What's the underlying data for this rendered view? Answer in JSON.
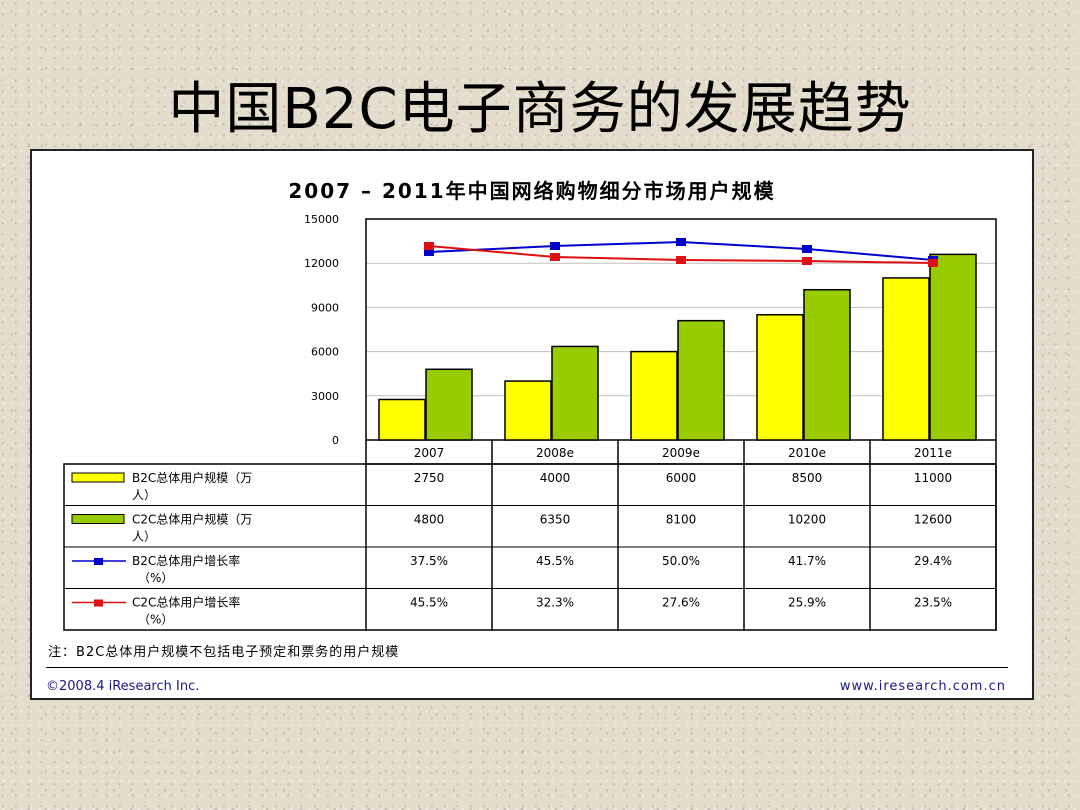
{
  "slide": {
    "title": "中国B2C电子商务的发展趋势"
  },
  "chart_data": {
    "type": "bar",
    "title": "2007 – 2011年中国网络购物细分市场用户规模",
    "categories": [
      "2007",
      "2008e",
      "2009e",
      "2010e",
      "2011e"
    ],
    "ylim": [
      0,
      15000
    ],
    "yticks": [
      "15000",
      "12000",
      "9000",
      "6000",
      "3000",
      "0"
    ],
    "grid": true,
    "legend_position": "table-left",
    "series": [
      {
        "name": "B2C总体用户规模（万人）",
        "type": "bar",
        "color": "#ffff00",
        "values": [
          2750,
          4000,
          6000,
          8500,
          11000
        ]
      },
      {
        "name": "C2C总体用户规模（万人）",
        "type": "bar",
        "color": "#99cc00",
        "values": [
          4800,
          6350,
          8100,
          10200,
          12600
        ]
      },
      {
        "name": "B2C总体用户增长率（%）",
        "type": "line",
        "color": "#0000cc",
        "values": [
          37.5,
          45.5,
          50.0,
          41.7,
          29.4
        ]
      },
      {
        "name": "C2C总体用户增长率（%）",
        "type": "line",
        "color": "#dd1111",
        "values": [
          45.5,
          32.3,
          27.6,
          25.9,
          23.5
        ]
      }
    ],
    "table": {
      "rows": [
        {
          "label_line1": "B2C总体用户规模（万",
          "label_line2": "人）",
          "cells": [
            "2750",
            "4000",
            "6000",
            "8500",
            "11000"
          ]
        },
        {
          "label_line1": "C2C总体用户规模（万",
          "label_line2": "人）",
          "cells": [
            "4800",
            "6350",
            "8100",
            "10200",
            "12600"
          ]
        },
        {
          "label_line1": "B2C总体用户增长率",
          "label_line2": "（%）",
          "cells": [
            "37.5%",
            "45.5%",
            "50.0%",
            "41.7%",
            "29.4%"
          ]
        },
        {
          "label_line1": "C2C总体用户增长率",
          "label_line2": "（%）",
          "cells": [
            "45.5%",
            "32.3%",
            "27.6%",
            "25.9%",
            "23.5%"
          ]
        }
      ]
    }
  },
  "footer": {
    "note": "注：B2C总体用户规模不包括电子预定和票务的用户规模",
    "copyright": "©2008.4 iResearch Inc.",
    "website": "www.iresearch.com.cn"
  }
}
